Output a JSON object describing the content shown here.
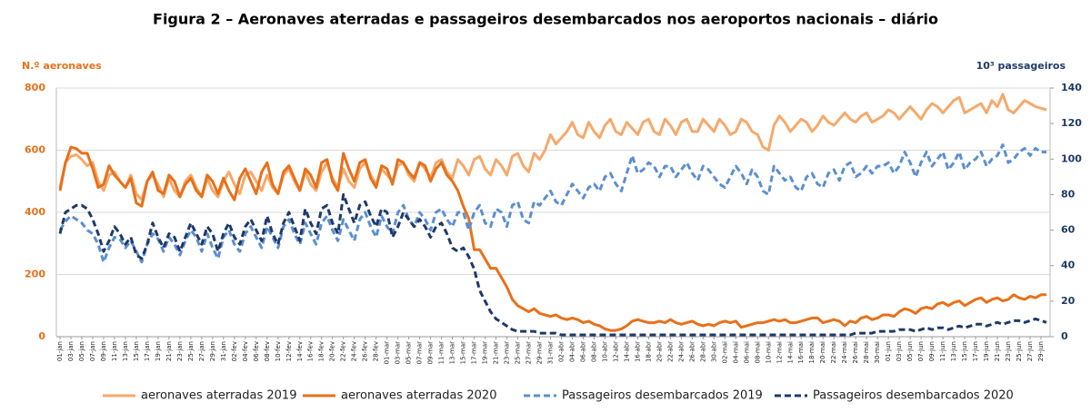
{
  "chart_data": {
    "type": "line",
    "title": "Figura 2 – Aeronaves aterradas e passageiros desembarcados nos aeroportos nacionais – diário",
    "ylabel": "N.º aeronaves",
    "y2label": "10³ passageiros",
    "ylim": [
      0,
      800
    ],
    "yticks": [
      0,
      200,
      400,
      600,
      800
    ],
    "y2lim": [
      0,
      140
    ],
    "y2ticks": [
      0,
      20,
      40,
      60,
      80,
      100,
      120,
      140
    ],
    "grid": true,
    "legend": "bottom",
    "categories": [
      "01-jan",
      null,
      "03-jan",
      null,
      "05-jan",
      null,
      "07-jan",
      null,
      "09-jan",
      null,
      "11-jan",
      null,
      "13-jan",
      null,
      "15-jan",
      null,
      "17-jan",
      null,
      "19-jan",
      null,
      "21-jan",
      null,
      "23-jan",
      null,
      "25-jan",
      null,
      "27-jan",
      null,
      "29-jan",
      null,
      "31-jan",
      null,
      "02-fev",
      null,
      "04-fev",
      null,
      "06-fev",
      null,
      "08-fev",
      null,
      "10-fev",
      null,
      "12-fev",
      null,
      "14-fev",
      null,
      "16-fev",
      null,
      "18-fev",
      null,
      "20-fev",
      null,
      "22-fev",
      null,
      "24-fev",
      null,
      "26-fev",
      null,
      "28-fev",
      null,
      "01-mar",
      null,
      "03-mar",
      null,
      "05-mar",
      null,
      "07-mar",
      null,
      "09-mar",
      null,
      "11-mar",
      null,
      "13-mar",
      null,
      "15-mar",
      null,
      "17-mar",
      null,
      "19-mar",
      null,
      "21-mar",
      null,
      "23-mar",
      null,
      "25-mar",
      null,
      "27-mar",
      null,
      "29-mar",
      null,
      "31-mar",
      null,
      "02-abr",
      null,
      "04-abr",
      null,
      "06-abr",
      null,
      "08-abr",
      null,
      "10-abr",
      null,
      "12-abr",
      null,
      "14-abr",
      null,
      "16-abr",
      null,
      "18-abr",
      null,
      "20-abr",
      null,
      "22-abr",
      null,
      "24-abr",
      null,
      "26-abr",
      null,
      "28-abr",
      null,
      "30-abr",
      null,
      "02-mai",
      null,
      "04-mai",
      null,
      "06-mai",
      null,
      "08-mai",
      null,
      "10-mai",
      null,
      "12-mai",
      null,
      "14-mai",
      null,
      "16-mai",
      null,
      "18-mai",
      null,
      "20-mai",
      null,
      "22-mai",
      null,
      "24-mai",
      null,
      "26-mai",
      null,
      "28-mai",
      null,
      "30-mai",
      null,
      "01-jun",
      null,
      "03-jun",
      null,
      "05-jun",
      null,
      "07-jun",
      null,
      "09-jun",
      null,
      "11-jun",
      null,
      "13-jun",
      null,
      "15-jun",
      null,
      "17-jun",
      null,
      "19-jun",
      null,
      "21-jun",
      null,
      "23-jun",
      null,
      "25-jun",
      null,
      "27-jun",
      null,
      "29-jun",
      null
    ],
    "series": [
      {
        "name": "aeronaves aterradas 2019",
        "color": "#f5a96b",
        "dashed": false,
        "axis": "y",
        "values": [
          480,
          560,
          580,
          585,
          570,
          550,
          560,
          500,
          470,
          520,
          530,
          500,
          480,
          520,
          460,
          440,
          500,
          520,
          490,
          450,
          510,
          470,
          450,
          500,
          520,
          480,
          450,
          510,
          470,
          450,
          500,
          530,
          490,
          460,
          520,
          530,
          500,
          470,
          520,
          480,
          460,
          520,
          540,
          500,
          470,
          530,
          490,
          470,
          530,
          560,
          510,
          480,
          540,
          500,
          480,
          540,
          560,
          520,
          490,
          540,
          520,
          500,
          550,
          560,
          520,
          500,
          560,
          540,
          510,
          560,
          570,
          530,
          510,
          570,
          550,
          520,
          570,
          580,
          540,
          520,
          570,
          550,
          520,
          580,
          590,
          550,
          530,
          590,
          570,
          600,
          650,
          620,
          640,
          660,
          690,
          650,
          640,
          690,
          660,
          640,
          680,
          700,
          660,
          650,
          690,
          670,
          650,
          690,
          700,
          660,
          650,
          700,
          680,
          650,
          690,
          700,
          660,
          660,
          700,
          680,
          660,
          700,
          680,
          650,
          660,
          700,
          690,
          660,
          650,
          610,
          600,
          680,
          710,
          690,
          660,
          680,
          700,
          690,
          660,
          680,
          710,
          690,
          680,
          700,
          720,
          700,
          690,
          710,
          720,
          690,
          700,
          710,
          730,
          720,
          700,
          720,
          740,
          720,
          700,
          730,
          750,
          740,
          720,
          740,
          760,
          770,
          720,
          730,
          740,
          750,
          720,
          760,
          740,
          780,
          730,
          720,
          740,
          760,
          750,
          740,
          735,
          730
        ]
      },
      {
        "name": "aeronaves aterradas 2020",
        "color": "#e8701a",
        "dashed": false,
        "axis": "y",
        "values": [
          470,
          560,
          610,
          605,
          590,
          590,
          540,
          480,
          490,
          550,
          520,
          500,
          480,
          510,
          430,
          420,
          500,
          530,
          470,
          460,
          520,
          500,
          450,
          490,
          510,
          470,
          450,
          520,
          500,
          460,
          510,
          470,
          440,
          510,
          540,
          500,
          460,
          530,
          560,
          490,
          460,
          530,
          550,
          510,
          470,
          540,
          520,
          480,
          560,
          570,
          500,
          470,
          590,
          540,
          500,
          560,
          570,
          510,
          480,
          550,
          540,
          490,
          570,
          560,
          530,
          510,
          560,
          550,
          500,
          540,
          560,
          520,
          500,
          470,
          420,
          380,
          280,
          280,
          250,
          220,
          220,
          190,
          160,
          120,
          100,
          90,
          80,
          90,
          75,
          70,
          65,
          70,
          60,
          55,
          60,
          55,
          45,
          50,
          40,
          35,
          25,
          20,
          20,
          25,
          35,
          50,
          55,
          50,
          45,
          45,
          50,
          45,
          55,
          45,
          40,
          45,
          50,
          40,
          35,
          40,
          35,
          45,
          50,
          45,
          50,
          30,
          35,
          40,
          45,
          45,
          50,
          55,
          50,
          55,
          45,
          45,
          50,
          55,
          60,
          60,
          45,
          50,
          55,
          50,
          35,
          50,
          45,
          60,
          65,
          55,
          60,
          70,
          70,
          65,
          80,
          90,
          85,
          75,
          90,
          95,
          90,
          105,
          110,
          100,
          110,
          115,
          100,
          110,
          120,
          125,
          110,
          120,
          125,
          115,
          120,
          135,
          125,
          120,
          130,
          125,
          135,
          135
        ]
      },
      {
        "name": "Passageiros desembarcados 2019",
        "color": "#5b8fd0",
        "dashed": true,
        "axis": "y2",
        "values": [
          60,
          65,
          68,
          66,
          64,
          60,
          58,
          52,
          42,
          50,
          56,
          55,
          50,
          54,
          48,
          42,
          52,
          58,
          55,
          48,
          56,
          52,
          46,
          54,
          60,
          56,
          48,
          58,
          50,
          44,
          56,
          60,
          52,
          48,
          58,
          62,
          56,
          50,
          62,
          56,
          50,
          62,
          66,
          58,
          52,
          64,
          58,
          52,
          64,
          68,
          60,
          54,
          66,
          60,
          54,
          66,
          70,
          62,
          56,
          68,
          62,
          58,
          70,
          74,
          66,
          62,
          70,
          66,
          60,
          70,
          72,
          66,
          62,
          70,
          70,
          60,
          70,
          74,
          64,
          62,
          72,
          70,
          62,
          74,
          76,
          66,
          64,
          76,
          74,
          78,
          82,
          76,
          74,
          80,
          86,
          82,
          78,
          84,
          86,
          82,
          90,
          92,
          86,
          82,
          92,
          102,
          92,
          94,
          98,
          96,
          90,
          96,
          96,
          90,
          94,
          98,
          92,
          88,
          96,
          94,
          90,
          86,
          84,
          90,
          96,
          92,
          86,
          94,
          90,
          82,
          80,
          96,
          92,
          88,
          90,
          84,
          82,
          90,
          92,
          86,
          84,
          92,
          94,
          88,
          96,
          98,
          90,
          92,
          96,
          92,
          96,
          96,
          98,
          92,
          96,
          104,
          98,
          90,
          98,
          104,
          96,
          100,
          104,
          94,
          98,
          104,
          94,
          98,
          100,
          104,
          96,
          100,
          102,
          108,
          98,
          100,
          104,
          106,
          102,
          106,
          104,
          104
        ]
      },
      {
        "name": "Passageiros desembarcados 2020",
        "color": "#1f3a68",
        "dashed": true,
        "axis": "y2",
        "values": [
          58,
          70,
          72,
          74,
          74,
          72,
          66,
          58,
          48,
          54,
          62,
          58,
          52,
          56,
          46,
          44,
          52,
          64,
          56,
          50,
          58,
          56,
          48,
          56,
          64,
          58,
          52,
          62,
          58,
          48,
          58,
          64,
          56,
          52,
          62,
          66,
          60,
          54,
          68,
          58,
          52,
          64,
          70,
          62,
          54,
          72,
          64,
          58,
          72,
          74,
          64,
          58,
          80,
          72,
          64,
          74,
          76,
          68,
          62,
          72,
          70,
          56,
          62,
          70,
          66,
          62,
          66,
          62,
          56,
          62,
          64,
          58,
          50,
          48,
          50,
          45,
          38,
          26,
          20,
          14,
          10,
          8,
          6,
          4,
          3,
          3,
          3,
          3,
          2,
          2,
          2,
          2,
          1,
          1,
          1,
          1,
          1,
          1,
          1,
          1,
          1,
          1,
          1,
          1,
          1,
          1,
          1,
          1,
          1,
          1,
          1,
          1,
          1,
          1,
          1,
          1,
          1,
          1,
          1,
          1,
          1,
          1,
          1,
          1,
          1,
          1,
          1,
          1,
          1,
          1,
          1,
          1,
          1,
          1,
          1,
          1,
          1,
          1,
          1,
          1,
          1,
          1,
          1,
          1,
          1,
          1,
          2,
          2,
          2,
          2,
          3,
          3,
          3,
          3,
          4,
          4,
          4,
          3,
          4,
          5,
          4,
          5,
          5,
          4,
          5,
          6,
          5,
          6,
          7,
          7,
          6,
          7,
          8,
          7,
          8,
          9,
          9,
          8,
          9,
          10,
          9,
          8
        ]
      }
    ]
  }
}
